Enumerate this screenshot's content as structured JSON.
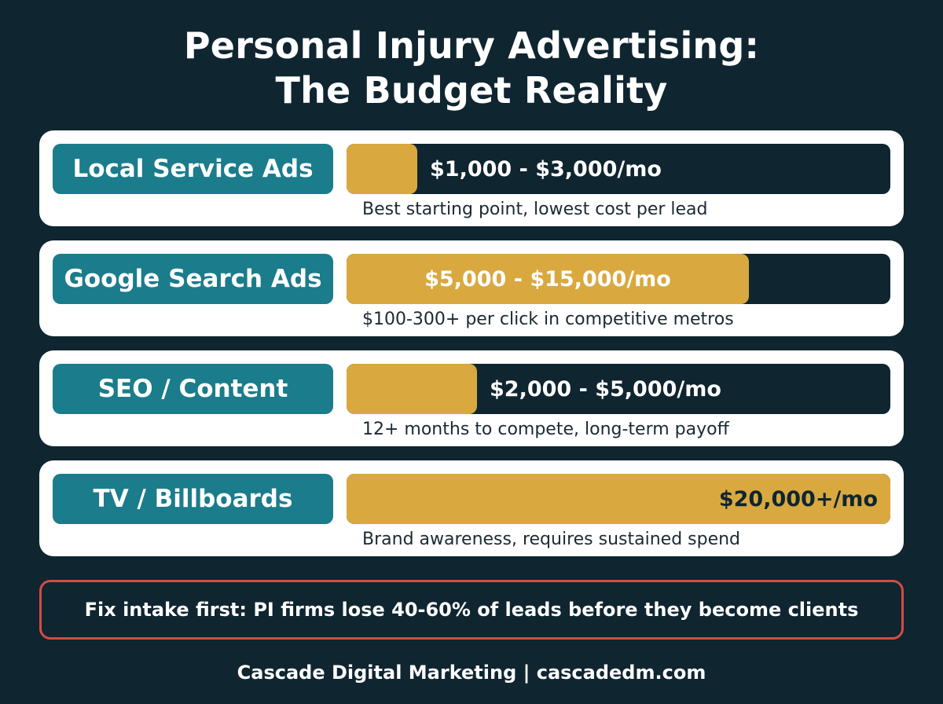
{
  "chart_data": {
    "type": "bar",
    "title": [
      "Personal Injury Advertising:",
      "The Budget Reality"
    ],
    "categories": [
      "Local Service Ads",
      "Google Search Ads",
      "SEO / Content",
      "TV / Billboards"
    ],
    "series": [
      {
        "values_min": [
          1000,
          5000,
          2000,
          20000
        ],
        "values_max": [
          3000,
          15000,
          5000,
          null
        ],
        "unit": "$/mo"
      }
    ],
    "bar_fill_fraction": [
      0.13,
      0.74,
      0.24,
      1.0
    ],
    "range_labels": [
      "$1,000 - $3,000/mo",
      "$5,000 - $15,000/mo",
      "$2,000 - $5,000/mo",
      "$20,000+/mo"
    ],
    "descriptions": [
      "Best starting point, lowest cost per lead",
      "$100-300+ per click in competitive metros",
      "12+ months to compete, long-term payoff",
      "Brand awareness, requires sustained spend"
    ],
    "xlabel": "",
    "ylabel": "",
    "grid": false
  },
  "note": "Fix intake first: PI firms lose 40-60% of leads before they become clients",
  "footer": "Cascade Digital Marketing | cascadedm.com",
  "colors": {
    "background": "#0f2530",
    "label_pill": "#1b7c8b",
    "bar_fill": "#d9a93f",
    "card": "#ffffff",
    "note_border": "#d64b43"
  }
}
